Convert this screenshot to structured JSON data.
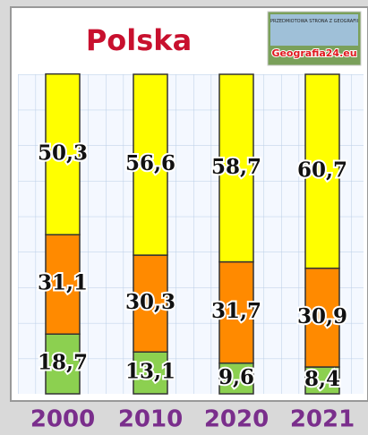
{
  "chart_data": {
    "type": "stacked-bar",
    "title": "Polska",
    "logo": {
      "tagline": "PRZEDMIOTOWA STRONA Z GEOGRAFII",
      "site": "Geografia24.eu"
    },
    "categories": [
      "2000",
      "2010",
      "2020",
      "2021"
    ],
    "ylim": [
      0,
      100
    ],
    "series": [
      {
        "color": "#8cd050",
        "values": [
          18.7,
          13.1,
          9.6,
          8.4
        ],
        "value_labels": [
          "18,7",
          "13,1",
          "9,6",
          "8,4"
        ]
      },
      {
        "color": "#ff8a00",
        "values": [
          31.1,
          30.3,
          31.7,
          30.9
        ],
        "value_labels": [
          "31,1",
          "30,3",
          "31,7",
          "30,9"
        ]
      },
      {
        "color": "#ffff00",
        "values": [
          50.3,
          56.6,
          58.7,
          60.7
        ],
        "value_labels": [
          "50,3",
          "56,6",
          "58,7",
          "60,7"
        ]
      }
    ]
  }
}
